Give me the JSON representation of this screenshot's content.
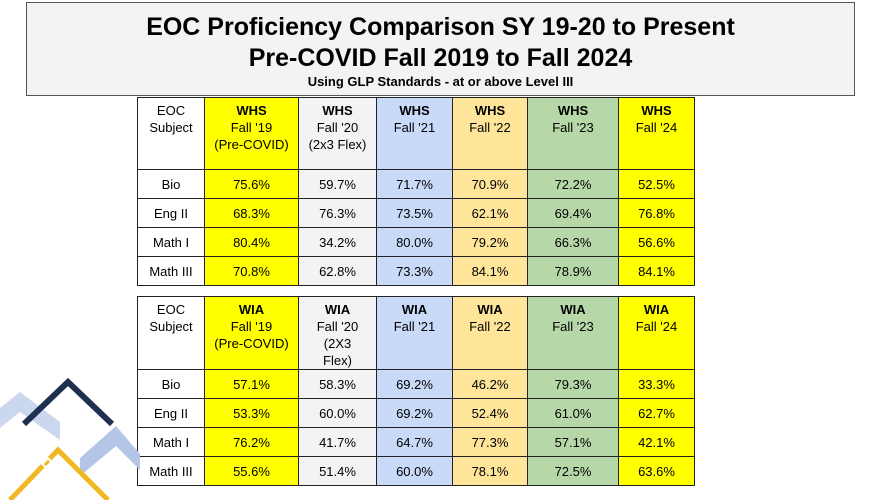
{
  "title": {
    "line1": "EOC Proficiency Comparison SY 19-20 to Present",
    "line2": "Pre-COVID Fall 2019 to Fall 2024",
    "line3": "Using GLP Standards - at or above Level III"
  },
  "colors": {
    "yellow": "#ffff00",
    "gray": "#f3f3f3",
    "blue": "#c9daf8",
    "orange": "#ffe599",
    "green": "#b6d7a8",
    "deco_navy": "#1f2f4f",
    "deco_gold": "#f2b824",
    "deco_lightblue": "#b4c6e7"
  },
  "table_whs": {
    "subject_header": [
      "EOC",
      "Subject"
    ],
    "columns": [
      {
        "school": "WHS",
        "term": "Fall '19",
        "note": "(Pre-COVID)"
      },
      {
        "school": "WHS",
        "term": "Fall '20",
        "note": "(2x3 Flex)"
      },
      {
        "school": "WHS",
        "term": "Fall '21",
        "note": ""
      },
      {
        "school": "WHS",
        "term": "Fall '22",
        "note": ""
      },
      {
        "school": "WHS",
        "term": "Fall '23",
        "note": ""
      },
      {
        "school": "WHS",
        "term": "Fall '24",
        "note": ""
      }
    ],
    "rows": [
      {
        "subject": "Bio",
        "values": [
          "75.6%",
          "59.7%",
          "71.7%",
          "70.9%",
          "72.2%",
          "52.5%"
        ]
      },
      {
        "subject": "Eng II",
        "values": [
          "68.3%",
          "76.3%",
          "73.5%",
          "62.1%",
          "69.4%",
          "76.8%"
        ]
      },
      {
        "subject": "Math I",
        "values": [
          "80.4%",
          "34.2%",
          "80.0%",
          "79.2%",
          "66.3%",
          "56.6%"
        ]
      },
      {
        "subject": "Math III",
        "values": [
          "70.8%",
          "62.8%",
          "73.3%",
          "84.1%",
          "78.9%",
          "84.1%"
        ]
      }
    ]
  },
  "table_wia": {
    "subject_header": [
      "EOC",
      "Subject"
    ],
    "columns": [
      {
        "school": "WIA",
        "term": "Fall '19",
        "note": "(Pre-COVID)"
      },
      {
        "school": "WIA",
        "term": "Fall '20",
        "note": "(2X3",
        "note2": "Flex)"
      },
      {
        "school": "WIA",
        "term": "Fall '21",
        "note": ""
      },
      {
        "school": "WIA",
        "term": "Fall '22",
        "note": ""
      },
      {
        "school": "WIA",
        "term": "Fall '23",
        "note": ""
      },
      {
        "school": "WIA",
        "term": "Fall '24",
        "note": ""
      }
    ],
    "rows": [
      {
        "subject": "Bio",
        "values": [
          "57.1%",
          "58.3%",
          "69.2%",
          "46.2%",
          "79.3%",
          "33.3%"
        ]
      },
      {
        "subject": "Eng II",
        "values": [
          "53.3%",
          "60.0%",
          "69.2%",
          "52.4%",
          "61.0%",
          "62.7%"
        ]
      },
      {
        "subject": "Math I",
        "values": [
          "76.2%",
          "41.7%",
          "64.7%",
          "77.3%",
          "57.1%",
          "42.1%"
        ]
      },
      {
        "subject": "Math III",
        "values": [
          "55.6%",
          "51.4%",
          "60.0%",
          "78.1%",
          "72.5%",
          "63.6%"
        ]
      }
    ]
  }
}
